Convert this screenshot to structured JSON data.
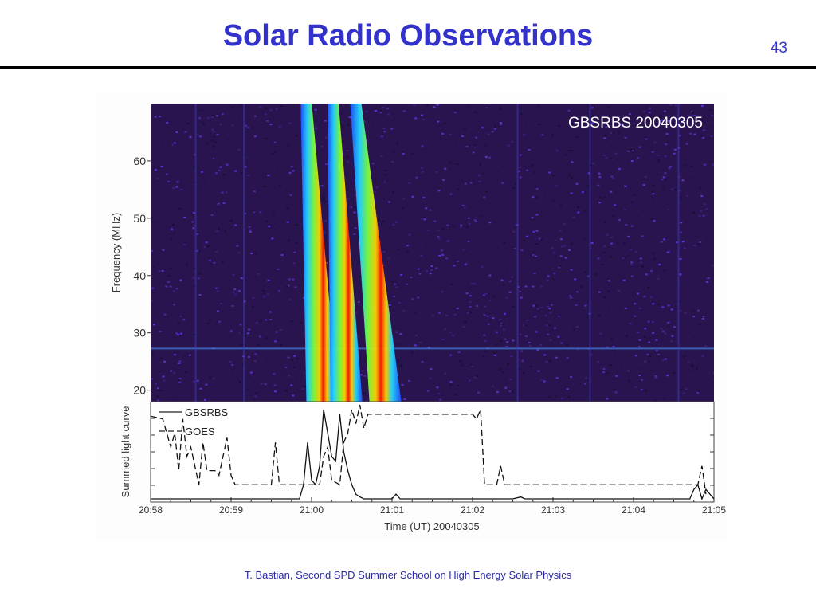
{
  "slide": {
    "title": "Solar Radio Observations",
    "number": "43",
    "footer": "T. Bastian, Second SPD Summer School on High Energy Solar Physics"
  },
  "colors": {
    "title": "#3333cc",
    "spectrogram_background": "#2a1450",
    "burst_core": "#ff1a00",
    "burst_edge": "#1e7bff"
  },
  "chart_data": [
    {
      "type": "heatmap",
      "title": "GBSRBS 20040305",
      "ylabel": "Frequency (MHz)",
      "ylim": [
        18,
        70
      ],
      "yticks": [
        "20",
        "30",
        "40",
        "50",
        "60"
      ],
      "x_range_ut": [
        "20:58",
        "21:05"
      ],
      "colormap": "rainbow",
      "bursts": [
        {
          "freq_mhz": [
            20,
            70
          ],
          "time_ut": [
            "21:00:08",
            "20:59:56"
          ]
        },
        {
          "freq_mhz": [
            20,
            70
          ],
          "time_ut": [
            "21:00:26",
            "21:00:16"
          ]
        },
        {
          "freq_mhz": [
            20,
            70
          ],
          "time_ut": [
            "21:00:55",
            "21:00:33"
          ]
        }
      ]
    },
    {
      "type": "line",
      "ylabel": "Summed light curve",
      "xlabel": "Time (UT) 20040305",
      "xticks": [
        "20:58",
        "20:59",
        "21:00",
        "21:01",
        "21:02",
        "21:03",
        "21:04",
        "21:05"
      ],
      "ylim": [
        0,
        1
      ],
      "legend_position": "top-left",
      "series": [
        {
          "name": "GBSRBS",
          "style": "solid",
          "t_min": [
            0,
            1.7,
            1.85,
            1.9,
            1.95,
            2.0,
            2.05,
            2.1,
            2.15,
            2.25,
            2.3,
            2.35,
            2.4,
            2.45,
            2.5,
            2.55,
            2.6,
            2.65,
            2.7,
            2.8,
            2.9,
            3.0,
            3.05,
            3.1,
            3.15,
            4.5,
            4.6,
            4.65,
            6.7,
            6.75,
            6.8,
            6.85,
            6.9,
            7.0
          ],
          "values": [
            0,
            0,
            0,
            0.15,
            0.6,
            0.2,
            0.15,
            0.35,
            0.95,
            0.45,
            0.4,
            0.9,
            0.5,
            0.3,
            0.15,
            0.05,
            0.02,
            0,
            0,
            0,
            0,
            0,
            0.05,
            0,
            0,
            0,
            0.02,
            0,
            0,
            0.1,
            0.15,
            0,
            0.1,
            0
          ]
        },
        {
          "name": "GOES",
          "style": "dashed",
          "t_min": [
            0,
            0.15,
            0.25,
            0.3,
            0.35,
            0.4,
            0.45,
            0.5,
            0.6,
            0.65,
            0.7,
            0.8,
            0.85,
            0.95,
            1.0,
            1.05,
            1.3,
            1.5,
            1.55,
            1.6,
            1.65,
            2.1,
            2.15,
            2.2,
            2.25,
            2.35,
            2.4,
            2.45,
            2.5,
            2.55,
            2.6,
            2.65,
            2.7,
            3.0,
            4.0,
            4.05,
            4.1,
            4.15,
            4.2,
            4.3,
            4.35,
            4.4,
            4.5,
            4.55,
            4.6,
            6.8,
            6.85,
            6.9
          ],
          "values": [
            0.88,
            0.85,
            0.55,
            0.7,
            0.3,
            0.85,
            0.45,
            0.55,
            0.15,
            0.6,
            0.3,
            0.3,
            0.25,
            0.65,
            0.25,
            0.15,
            0.15,
            0.15,
            0.6,
            0.15,
            0.15,
            0.15,
            0.45,
            0.55,
            0.2,
            0.15,
            0.6,
            0.7,
            0.95,
            0.8,
            1,
            0.75,
            0.9,
            0.9,
            0.9,
            0.85,
            0.95,
            0.15,
            0.15,
            0.15,
            0.35,
            0.15,
            0.15,
            0.15,
            0.15,
            0.15,
            0.35,
            0.05
          ]
        }
      ]
    }
  ]
}
